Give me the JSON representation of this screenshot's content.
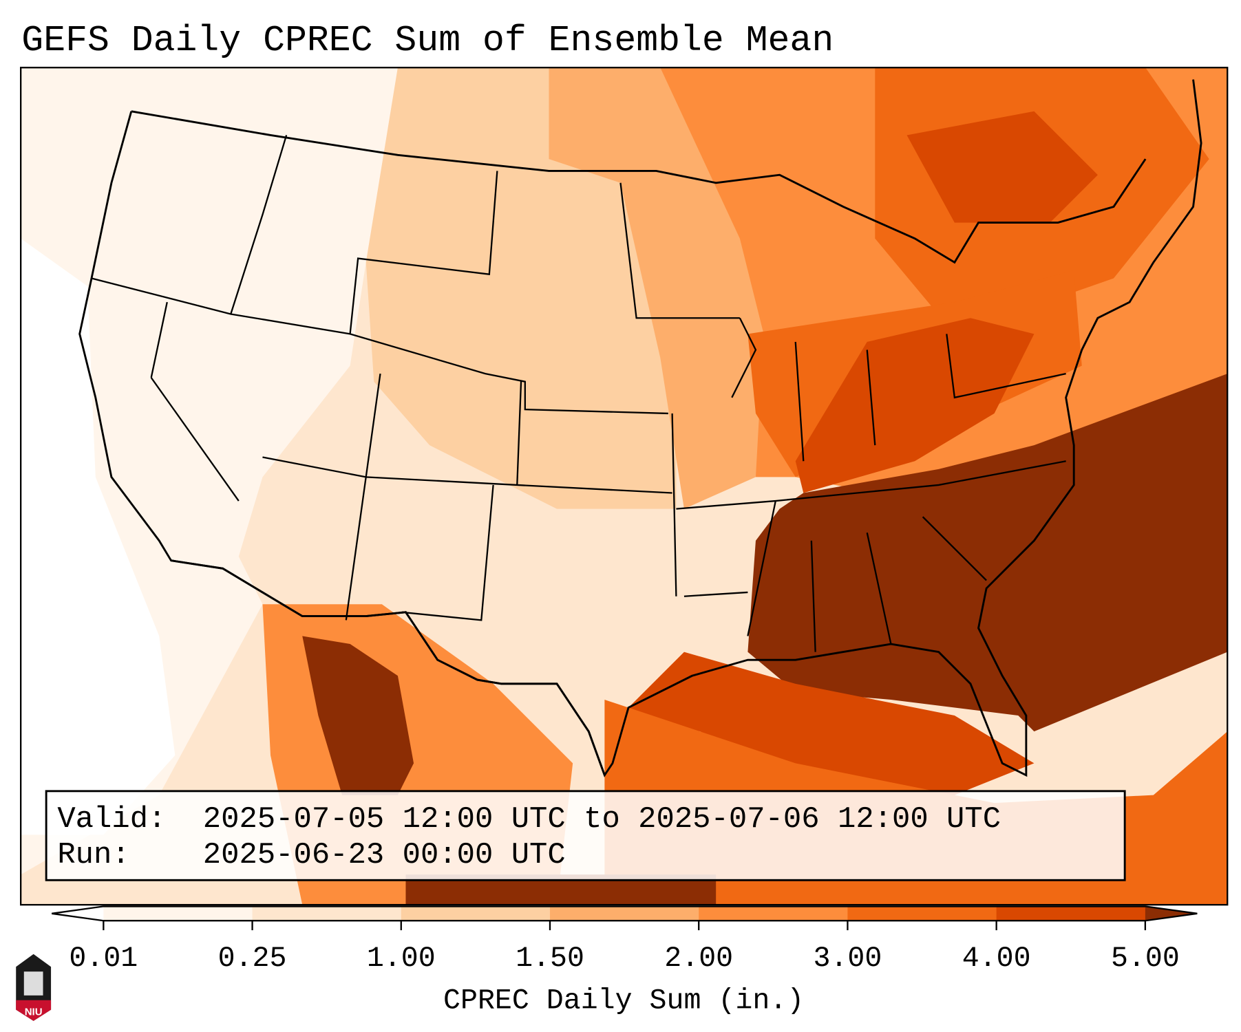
{
  "title": "GEFS Daily CPREC Sum of Ensemble Mean",
  "info": {
    "valid_label": "Valid:",
    "valid_value": "2025-07-05 12:00 UTC to 2025-07-06 12:00 UTC",
    "run_label": "Run:",
    "run_value": "2025-06-23 00:00 UTC"
  },
  "colorbar": {
    "label": "CPREC Daily Sum (in.)",
    "ticks": [
      "0.01",
      "0.25",
      "1.00",
      "1.50",
      "2.00",
      "3.00",
      "4.00",
      "5.00"
    ],
    "colors": [
      "#fff5eb",
      "#fee6ce",
      "#fdd0a2",
      "#fdae6b",
      "#fd8d3c",
      "#f16913",
      "#d94801"
    ],
    "under_color": "#ffffff",
    "over_color": "#8c2d04"
  },
  "logo": {
    "text": "NIU"
  }
}
